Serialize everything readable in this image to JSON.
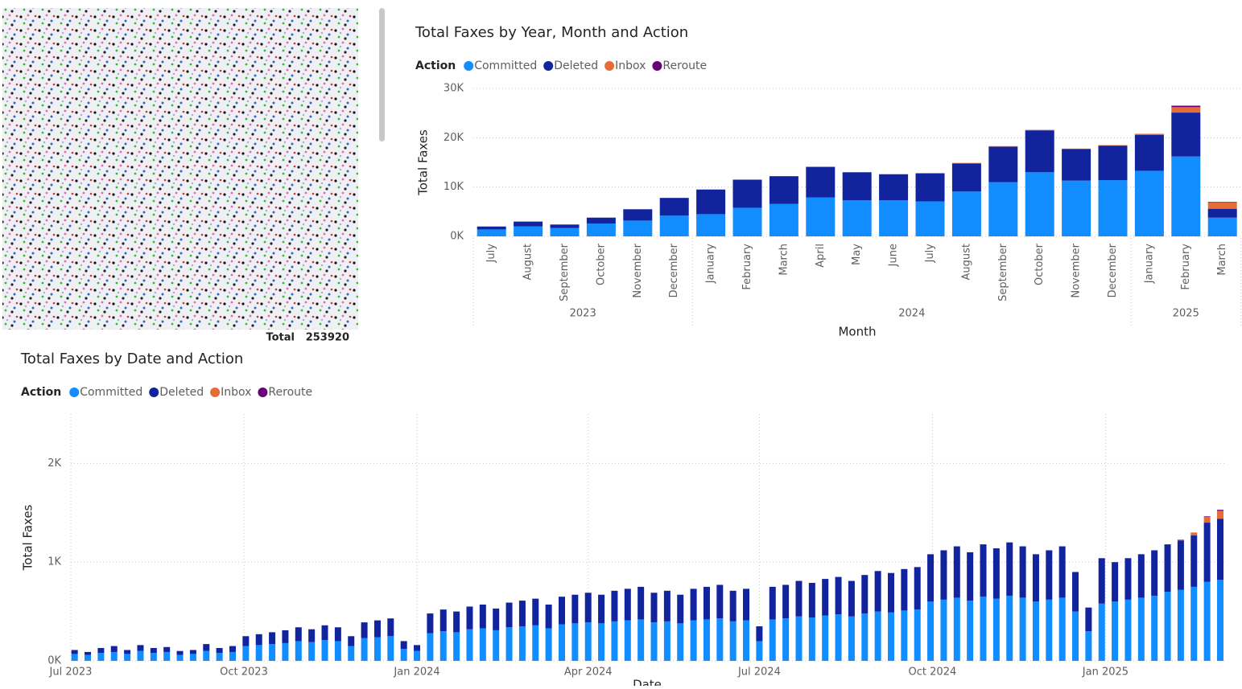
{
  "summary": {
    "label": "Total",
    "value": 253920
  },
  "chart_data": [
    {
      "type": "bar",
      "title": "Total Faxes by Year, Month and Action",
      "legend_title": "Action",
      "x_label": "Month",
      "y_label": "Total Faxes",
      "groups": [
        {
          "label": "2023",
          "months": [
            "July",
            "August",
            "September",
            "October",
            "November",
            "December"
          ]
        },
        {
          "label": "2024",
          "months": [
            "January",
            "February",
            "March",
            "April",
            "May",
            "June",
            "July",
            "August",
            "September",
            "October",
            "November",
            "December"
          ]
        },
        {
          "label": "2025",
          "months": [
            "January",
            "February",
            "March"
          ]
        }
      ],
      "series": [
        {
          "name": "Committed",
          "color": "#118dff",
          "values": [
            1400,
            2000,
            1700,
            2600,
            3200,
            4200,
            4500,
            5800,
            6600,
            7900,
            7300,
            7300,
            7100,
            9100,
            11000,
            13000,
            11300,
            11400,
            13300,
            16200,
            3800
          ]
        },
        {
          "name": "Deleted",
          "color": "#12239e",
          "values": [
            600,
            1000,
            700,
            1200,
            2300,
            3600,
            5000,
            5700,
            5600,
            6200,
            5700,
            5300,
            5700,
            5700,
            7200,
            8500,
            6400,
            7000,
            7300,
            8900,
            1800
          ]
        },
        {
          "name": "Inbox",
          "color": "#e66c37",
          "values": [
            0,
            0,
            0,
            0,
            0,
            0,
            0,
            0,
            0,
            0,
            0,
            0,
            0,
            100,
            100,
            100,
            100,
            100,
            200,
            1100,
            1300
          ]
        },
        {
          "name": "Reroute",
          "color": "#6b007b",
          "values": [
            0,
            0,
            0,
            0,
            0,
            0,
            0,
            0,
            0,
            0,
            0,
            0,
            0,
            0,
            0,
            0,
            0,
            0,
            0,
            300,
            100
          ]
        }
      ],
      "ylim": [
        0,
        30000
      ],
      "yticks": [
        {
          "value": 0,
          "label": "0K"
        },
        {
          "value": 10000,
          "label": "10K"
        },
        {
          "value": 20000,
          "label": "20K"
        },
        {
          "value": 30000,
          "label": "30K"
        }
      ],
      "grid": true
    },
    {
      "type": "bar",
      "title": "Total Faxes by Date and Action",
      "legend_title": "Action",
      "x_label": "Date",
      "y_label": "Total Faxes",
      "x": [
        "2023-07-03",
        "2023-07-10",
        "2023-07-17",
        "2023-07-24",
        "2023-07-31",
        "2023-08-07",
        "2023-08-14",
        "2023-08-21",
        "2023-08-28",
        "2023-09-04",
        "2023-09-11",
        "2023-09-18",
        "2023-09-25",
        "2023-10-02",
        "2023-10-09",
        "2023-10-16",
        "2023-10-23",
        "2023-10-30",
        "2023-11-06",
        "2023-11-13",
        "2023-11-20",
        "2023-11-27",
        "2023-12-04",
        "2023-12-11",
        "2023-12-18",
        "2023-12-25",
        "2024-01-01",
        "2024-01-08",
        "2024-01-15",
        "2024-01-22",
        "2024-01-29",
        "2024-02-05",
        "2024-02-12",
        "2024-02-19",
        "2024-02-26",
        "2024-03-04",
        "2024-03-11",
        "2024-03-18",
        "2024-03-25",
        "2024-04-01",
        "2024-04-08",
        "2024-04-15",
        "2024-04-22",
        "2024-04-29",
        "2024-05-06",
        "2024-05-13",
        "2024-05-20",
        "2024-05-27",
        "2024-06-03",
        "2024-06-10",
        "2024-06-17",
        "2024-06-24",
        "2024-07-01",
        "2024-07-08",
        "2024-07-15",
        "2024-07-22",
        "2024-07-29",
        "2024-08-05",
        "2024-08-12",
        "2024-08-19",
        "2024-08-26",
        "2024-09-02",
        "2024-09-09",
        "2024-09-16",
        "2024-09-23",
        "2024-09-30",
        "2024-10-07",
        "2024-10-14",
        "2024-10-21",
        "2024-10-28",
        "2024-11-04",
        "2024-11-11",
        "2024-11-18",
        "2024-11-25",
        "2024-12-02",
        "2024-12-09",
        "2024-12-16",
        "2024-12-23",
        "2024-12-30",
        "2025-01-06",
        "2025-01-13",
        "2025-01-20",
        "2025-01-27",
        "2025-02-03",
        "2025-02-10",
        "2025-02-17",
        "2025-02-24",
        "2025-03-03"
      ],
      "series": [
        {
          "name": "Committed",
          "color": "#118dff",
          "values": [
            70,
            60,
            80,
            90,
            70,
            100,
            80,
            90,
            60,
            70,
            100,
            80,
            90,
            150,
            160,
            170,
            180,
            200,
            190,
            210,
            200,
            150,
            230,
            240,
            250,
            120,
            100,
            280,
            300,
            290,
            320,
            330,
            310,
            340,
            350,
            360,
            330,
            370,
            380,
            390,
            380,
            400,
            410,
            420,
            390,
            400,
            380,
            410,
            420,
            430,
            400,
            410,
            200,
            420,
            430,
            450,
            440,
            460,
            470,
            450,
            480,
            500,
            490,
            510,
            520,
            600,
            620,
            640,
            610,
            650,
            630,
            660,
            640,
            600,
            620,
            640,
            500,
            300,
            580,
            600,
            620,
            640,
            660,
            700,
            720,
            750,
            800,
            820
          ]
        },
        {
          "name": "Deleted",
          "color": "#12239e",
          "values": [
            40,
            30,
            50,
            60,
            40,
            60,
            50,
            50,
            40,
            40,
            70,
            50,
            60,
            100,
            110,
            120,
            130,
            140,
            130,
            150,
            140,
            100,
            160,
            170,
            180,
            80,
            60,
            200,
            220,
            210,
            230,
            240,
            220,
            250,
            260,
            270,
            240,
            280,
            290,
            300,
            290,
            310,
            320,
            330,
            300,
            310,
            290,
            320,
            330,
            340,
            310,
            320,
            150,
            330,
            340,
            360,
            350,
            370,
            380,
            360,
            390,
            410,
            400,
            420,
            430,
            480,
            500,
            520,
            490,
            530,
            510,
            540,
            520,
            480,
            500,
            520,
            400,
            240,
            460,
            400,
            420,
            440,
            460,
            480,
            500,
            520,
            600,
            620
          ]
        },
        {
          "name": "Inbox",
          "color": "#e66c37",
          "values": [
            0,
            0,
            0,
            0,
            0,
            0,
            0,
            0,
            0,
            0,
            0,
            0,
            0,
            0,
            0,
            0,
            0,
            0,
            0,
            0,
            0,
            0,
            0,
            0,
            0,
            0,
            0,
            0,
            0,
            0,
            0,
            0,
            0,
            0,
            0,
            0,
            0,
            0,
            0,
            0,
            0,
            0,
            0,
            0,
            0,
            0,
            0,
            0,
            0,
            0,
            0,
            0,
            0,
            0,
            0,
            0,
            0,
            0,
            0,
            0,
            0,
            0,
            0,
            0,
            0,
            0,
            0,
            0,
            0,
            0,
            0,
            0,
            0,
            0,
            0,
            0,
            0,
            0,
            0,
            0,
            0,
            0,
            0,
            0,
            10,
            30,
            60,
            80
          ]
        },
        {
          "name": "Reroute",
          "color": "#6b007b",
          "values": [
            0,
            0,
            0,
            0,
            0,
            0,
            0,
            0,
            0,
            0,
            0,
            0,
            0,
            0,
            0,
            0,
            0,
            0,
            0,
            0,
            0,
            0,
            0,
            0,
            0,
            0,
            0,
            0,
            0,
            0,
            0,
            0,
            0,
            0,
            0,
            0,
            0,
            0,
            0,
            0,
            0,
            0,
            0,
            0,
            0,
            0,
            0,
            0,
            0,
            0,
            0,
            0,
            0,
            0,
            0,
            0,
            0,
            0,
            0,
            0,
            0,
            0,
            0,
            0,
            0,
            0,
            0,
            0,
            0,
            0,
            0,
            0,
            0,
            0,
            0,
            0,
            0,
            0,
            0,
            0,
            0,
            0,
            0,
            0,
            0,
            0,
            5,
            10
          ]
        }
      ],
      "xlim": [
        "2023-07-01",
        "2025-03-06"
      ],
      "xticks": [
        {
          "value": "2023-07-01",
          "label": "Jul 2023"
        },
        {
          "value": "2023-10-01",
          "label": "Oct 2023"
        },
        {
          "value": "2024-01-01",
          "label": "Jan 2024"
        },
        {
          "value": "2024-04-01",
          "label": "Apr 2024"
        },
        {
          "value": "2024-07-01",
          "label": "Jul 2024"
        },
        {
          "value": "2024-10-01",
          "label": "Oct 2024"
        },
        {
          "value": "2025-01-01",
          "label": "Jan 2025"
        }
      ],
      "ylim": [
        0,
        2500
      ],
      "yticks": [
        {
          "value": 0,
          "label": "0K"
        },
        {
          "value": 1000,
          "label": "1K"
        },
        {
          "value": 2000,
          "label": "2K"
        }
      ],
      "grid": true
    }
  ]
}
